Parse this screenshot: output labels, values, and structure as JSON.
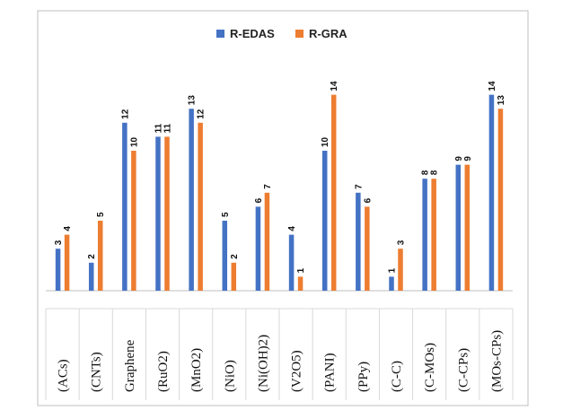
{
  "chart_data": {
    "type": "bar",
    "title": "",
    "xlabel": "",
    "ylabel": "",
    "ylim": [
      0,
      15
    ],
    "grid": false,
    "legend_position": "top-center",
    "categories": [
      "(ACs)",
      "(CNTs)",
      "Graphene",
      "(RuO2)",
      "(MnO2)",
      "(NiO)",
      "(Ni(OH)2)",
      "(V2O5)",
      "(PANI)",
      "(PPy)",
      "(C-C)",
      "(C-MOs)",
      "(C-CPs)",
      "(MOs-CPs)"
    ],
    "series": [
      {
        "name": "R-EDAS",
        "color": "#4472C4",
        "values": [
          3,
          2,
          12,
          11,
          13,
          5,
          6,
          4,
          10,
          7,
          1,
          8,
          9,
          14
        ]
      },
      {
        "name": "R-GRA",
        "color": "#ED7D31",
        "values": [
          4,
          5,
          10,
          11,
          12,
          2,
          7,
          1,
          14,
          6,
          3,
          8,
          9,
          13
        ]
      }
    ]
  },
  "colors": {
    "frame_border": "#bfbfbf",
    "divider": "#d9d9d9",
    "axis": "#bfbfbf"
  }
}
